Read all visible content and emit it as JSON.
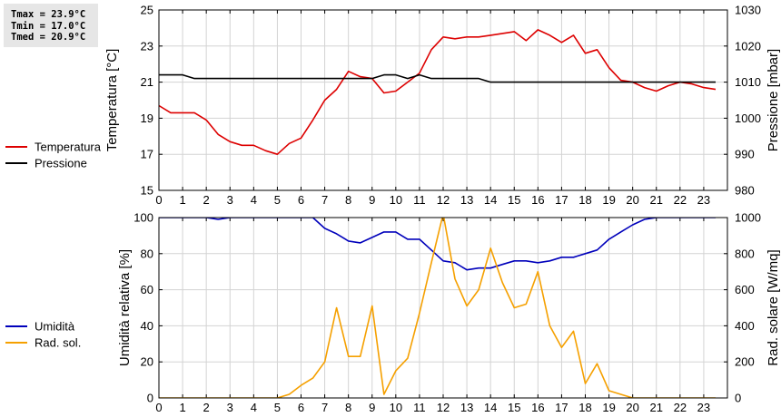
{
  "stats": {
    "tmax": "Tmax = 23.9°C",
    "tmin": "Tmin = 17.0°C",
    "tmed": "Tmed = 20.9°C"
  },
  "colors": {
    "temperatura": "#dd0000",
    "pressione": "#000000",
    "umidita": "#0000bb",
    "rad_sol": "#f5a000",
    "grid": "#d3d3d3",
    "background": "#ffffff"
  },
  "chart_data": [
    {
      "type": "line",
      "x_ticks": [
        "0",
        "1",
        "2",
        "3",
        "4",
        "5",
        "6",
        "7",
        "8",
        "9",
        "10",
        "11",
        "12",
        "13",
        "14",
        "15",
        "16",
        "17",
        "18",
        "19",
        "20",
        "21",
        "22",
        "23"
      ],
      "xlim": [
        0,
        24
      ],
      "ylabel_left": "Temperatura [°C]",
      "ylabel_right": "Pressione [mbar]",
      "ylim_left": [
        15,
        25
      ],
      "ylim_right": [
        980,
        1030
      ],
      "yticks_left": [
        "15",
        "17",
        "19",
        "21",
        "23",
        "25"
      ],
      "yticks_right": [
        "980",
        "990",
        "1000",
        "1010",
        "1020",
        "1030"
      ],
      "grid": true,
      "legend_position": "left",
      "series": [
        {
          "name": "Temperatura",
          "axis": "left",
          "color": "#dd0000",
          "x": [
            0,
            0.5,
            1,
            1.5,
            2,
            2.5,
            3,
            3.5,
            4,
            4.5,
            5,
            5.5,
            6,
            6.5,
            7,
            7.5,
            8,
            8.5,
            9,
            9.5,
            10,
            10.5,
            11,
            11.5,
            12,
            12.5,
            13,
            13.5,
            14,
            14.5,
            15,
            15.5,
            16,
            16.5,
            17,
            17.5,
            18,
            18.5,
            19,
            19.5,
            20,
            20.5,
            21,
            21.5,
            22,
            22.5,
            23,
            23.5
          ],
          "y": [
            19.7,
            19.3,
            19.3,
            19.3,
            18.9,
            18.1,
            17.7,
            17.5,
            17.5,
            17.2,
            17.0,
            17.6,
            17.9,
            18.9,
            20.0,
            20.6,
            21.6,
            21.3,
            21.2,
            20.4,
            20.5,
            21.0,
            21.5,
            22.8,
            23.5,
            23.4,
            23.5,
            23.5,
            23.6,
            23.7,
            23.8,
            23.3,
            23.9,
            23.6,
            23.2,
            23.6,
            22.6,
            22.8,
            21.8,
            21.1,
            21.0,
            20.7,
            20.5,
            20.8,
            21.0,
            20.9,
            20.7,
            20.6
          ]
        },
        {
          "name": "Pressione",
          "axis": "right",
          "color": "#000000",
          "x": [
            0,
            0.5,
            1,
            1.5,
            2,
            2.5,
            3,
            3.5,
            4,
            4.5,
            5,
            5.5,
            6,
            6.5,
            7,
            7.5,
            8,
            8.5,
            9,
            9.5,
            10,
            10.5,
            11,
            11.5,
            12,
            12.5,
            13,
            13.5,
            14,
            14.5,
            15,
            15.5,
            16,
            16.5,
            17,
            17.5,
            18,
            18.5,
            19,
            19.5,
            20,
            20.5,
            21,
            21.5,
            22,
            22.5,
            23,
            23.5
          ],
          "y": [
            1012,
            1012,
            1012,
            1011,
            1011,
            1011,
            1011,
            1011,
            1011,
            1011,
            1011,
            1011,
            1011,
            1011,
            1011,
            1011,
            1011,
            1011,
            1011,
            1012,
            1012,
            1011,
            1012,
            1011,
            1011,
            1011,
            1011,
            1011,
            1010,
            1010,
            1010,
            1010,
            1010,
            1010,
            1010,
            1010,
            1010,
            1010,
            1010,
            1010,
            1010,
            1010,
            1010,
            1010,
            1010,
            1010,
            1010,
            1010
          ]
        }
      ]
    },
    {
      "type": "line",
      "x_ticks": [
        "0",
        "1",
        "2",
        "3",
        "4",
        "5",
        "6",
        "7",
        "8",
        "9",
        "10",
        "11",
        "12",
        "13",
        "14",
        "15",
        "16",
        "17",
        "18",
        "19",
        "20",
        "21",
        "22",
        "23"
      ],
      "xlim": [
        0,
        24
      ],
      "ylabel_left": "Umidità relativa [%]",
      "ylabel_right": "Rad. solare [W/mq]",
      "ylim_left": [
        0,
        100
      ],
      "ylim_right": [
        0,
        1000
      ],
      "yticks_left": [
        "0",
        "20",
        "40",
        "60",
        "80",
        "100"
      ],
      "yticks_right": [
        "0",
        "200",
        "400",
        "600",
        "800",
        "1000"
      ],
      "grid": true,
      "legend_position": "left",
      "series": [
        {
          "name": "Umidità",
          "axis": "left",
          "color": "#0000bb",
          "x": [
            0,
            0.5,
            1,
            1.5,
            2,
            2.5,
            3,
            3.5,
            4,
            4.5,
            5,
            5.5,
            6,
            6.5,
            7,
            7.5,
            8,
            8.5,
            9,
            9.5,
            10,
            10.5,
            11,
            11.5,
            12,
            12.5,
            13,
            13.5,
            14,
            14.5,
            15,
            15.5,
            16,
            16.5,
            17,
            17.5,
            18,
            18.5,
            19,
            19.5,
            20,
            20.5,
            21,
            21.5,
            22,
            22.5,
            23,
            23.5
          ],
          "y": [
            100,
            100,
            100,
            100,
            100,
            99,
            100,
            100,
            100,
            100,
            100,
            100,
            100,
            100,
            94,
            91,
            87,
            86,
            89,
            92,
            92,
            88,
            88,
            82,
            76,
            75,
            71,
            72,
            72,
            74,
            76,
            76,
            75,
            76,
            78,
            78,
            80,
            82,
            88,
            92,
            96,
            99,
            100,
            100,
            100,
            100,
            100,
            100
          ]
        },
        {
          "name": "Rad. sol.",
          "axis": "right",
          "color": "#f5a000",
          "x": [
            0,
            0.5,
            1,
            1.5,
            2,
            2.5,
            3,
            3.5,
            4,
            4.5,
            5,
            5.5,
            6,
            6.5,
            7,
            7.5,
            8,
            8.5,
            9,
            9.5,
            10,
            10.5,
            11,
            11.5,
            12,
            12.5,
            13,
            13.5,
            14,
            14.5,
            15,
            15.5,
            16,
            16.5,
            17,
            17.5,
            18,
            18.5,
            19,
            19.5,
            20,
            20.5,
            21,
            21.5,
            22,
            22.5,
            23,
            23.5
          ],
          "y": [
            0,
            0,
            0,
            0,
            0,
            0,
            0,
            0,
            0,
            0,
            0,
            20,
            70,
            110,
            200,
            500,
            230,
            230,
            510,
            20,
            150,
            220,
            470,
            750,
            1020,
            660,
            510,
            600,
            830,
            640,
            500,
            520,
            700,
            400,
            280,
            370,
            80,
            190,
            40,
            20,
            0,
            0,
            0,
            0,
            0,
            0,
            0,
            0
          ]
        }
      ]
    }
  ]
}
